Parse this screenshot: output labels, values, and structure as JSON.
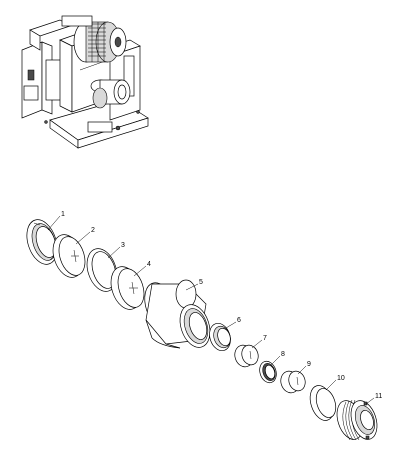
{
  "parts": [
    {
      "id": "ring-1",
      "label": "1"
    },
    {
      "id": "lens-2",
      "label": "2"
    },
    {
      "id": "ring-3",
      "label": "3"
    },
    {
      "id": "lens-4",
      "label": "4"
    },
    {
      "id": "barrel-5",
      "label": "5"
    },
    {
      "id": "ring-6",
      "label": "6"
    },
    {
      "id": "lens-7",
      "label": "7"
    },
    {
      "id": "ring-8",
      "label": "8"
    },
    {
      "id": "lens-9",
      "label": "9"
    },
    {
      "id": "ring-10",
      "label": "10"
    },
    {
      "id": "retainer-11",
      "label": "11"
    }
  ]
}
